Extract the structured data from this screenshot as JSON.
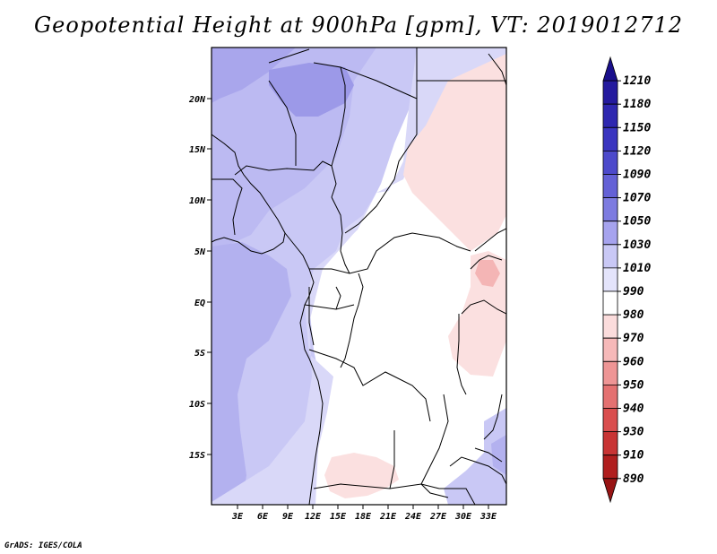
{
  "title": "Geopotential Height at 900hPa [gpm], VT: 2019012712",
  "footer": "GrADS: IGES/COLA",
  "map": {
    "lat_labels": [
      "20N",
      "15N",
      "10N",
      "5N",
      "EQ",
      "5S",
      "10S",
      "15S"
    ],
    "lon_labels": [
      "3E",
      "6E",
      "9E",
      "12E",
      "15E",
      "18E",
      "21E",
      "24E",
      "27E",
      "30E",
      "33E"
    ]
  },
  "colorbar": {
    "levels": [
      "1210",
      "1180",
      "1150",
      "1120",
      "1090",
      "1070",
      "1050",
      "1030",
      "1010",
      "990",
      "980",
      "970",
      "960",
      "950",
      "940",
      "930",
      "910",
      "890"
    ],
    "colors": [
      "#1a0f8c",
      "#241a9e",
      "#2e27b0",
      "#3a35c0",
      "#4d4acb",
      "#6461d6",
      "#7d7be0",
      "#a6a3ee",
      "#c9c8f5",
      "#e4e4fb",
      "#ffffff",
      "#fbdcdc",
      "#f6b9b9",
      "#ee9595",
      "#e47171",
      "#d94e4e",
      "#c83434",
      "#b01e1e",
      "#981414"
    ]
  }
}
